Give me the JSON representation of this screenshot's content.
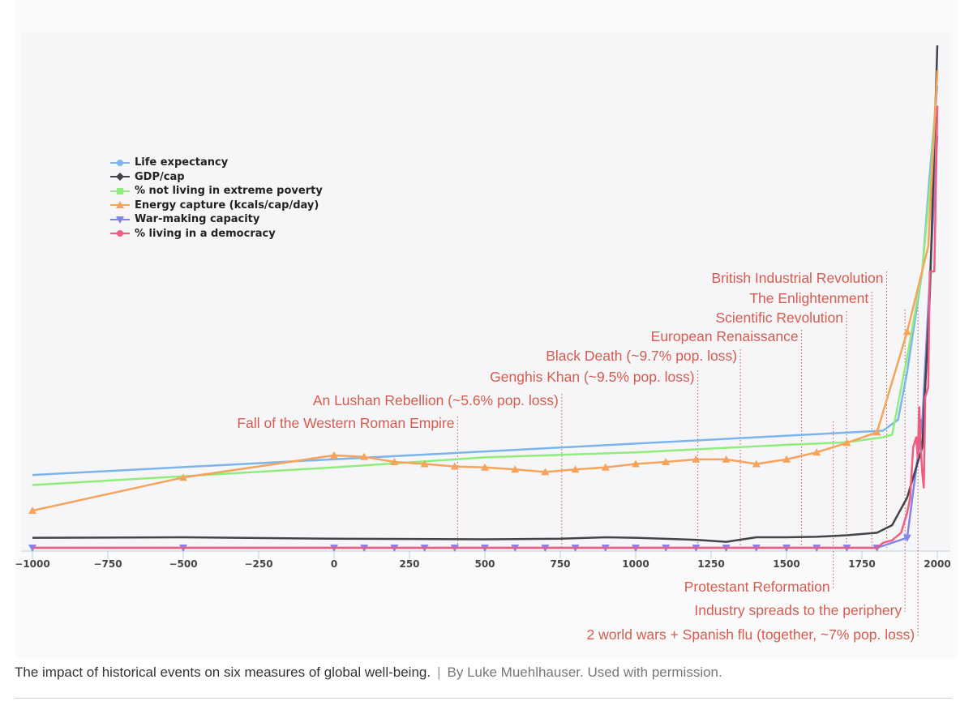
{
  "chart_data": {
    "type": "line",
    "title": "",
    "xlabel": "",
    "ylabel": "",
    "xlim": [
      -1050,
      2050
    ],
    "ylim": [
      0,
      100
    ],
    "x_ticks": [
      -1000,
      -750,
      -500,
      -250,
      0,
      250,
      500,
      750,
      1000,
      1250,
      1500,
      1750,
      2000
    ],
    "grid": false,
    "legend_position": "upper-left",
    "series": [
      {
        "name": "Life expectancy",
        "color": "#7cb5ec",
        "marker": "circle",
        "points": [
          [
            -1000,
            14.5
          ],
          [
            1820,
            23.3
          ],
          [
            1870,
            25.5
          ],
          [
            1900,
            35
          ],
          [
            1950,
            55
          ],
          [
            1973,
            73
          ],
          [
            2000,
            92
          ]
        ]
      },
      {
        "name": "GDP/cap",
        "color": "#434348",
        "marker": "diamond",
        "points": [
          [
            -1000,
            2
          ],
          [
            -500,
            2.1
          ],
          [
            0,
            1.8
          ],
          [
            500,
            1.7
          ],
          [
            750,
            1.8
          ],
          [
            900,
            2.1
          ],
          [
            1000,
            2
          ],
          [
            1200,
            1.6
          ],
          [
            1300,
            1.2
          ],
          [
            1400,
            2.1
          ],
          [
            1500,
            2.1
          ],
          [
            1600,
            2.2
          ],
          [
            1700,
            2.5
          ],
          [
            1800,
            3
          ],
          [
            1850,
            4.5
          ],
          [
            1900,
            10
          ],
          [
            1950,
            20
          ],
          [
            1975,
            50
          ],
          [
            2000,
            100
          ]
        ]
      },
      {
        "name": "% not living in extreme poverty",
        "color": "#90ed7d",
        "marker": "square",
        "points": [
          [
            -1000,
            12.5
          ],
          [
            0,
            16
          ],
          [
            500,
            18
          ],
          [
            1000,
            19
          ],
          [
            1500,
            20.5
          ],
          [
            1700,
            21
          ],
          [
            1820,
            22
          ],
          [
            1850,
            22.5
          ],
          [
            1900,
            38
          ],
          [
            1950,
            55
          ],
          [
            1980,
            75
          ],
          [
            2000,
            95
          ]
        ]
      },
      {
        "name": "Energy capture (kcals/cap/day)",
        "color": "#f7a35c",
        "marker": "triangle",
        "points": [
          [
            -1000,
            7.4
          ],
          [
            -500,
            14
          ],
          [
            0,
            18.4
          ],
          [
            100,
            18.1
          ],
          [
            200,
            17.1
          ],
          [
            300,
            16.7
          ],
          [
            400,
            16.2
          ],
          [
            500,
            16
          ],
          [
            600,
            15.6
          ],
          [
            700,
            15.1
          ],
          [
            800,
            15.6
          ],
          [
            900,
            16
          ],
          [
            1000,
            16.7
          ],
          [
            1100,
            17.1
          ],
          [
            1200,
            17.6
          ],
          [
            1300,
            17.6
          ],
          [
            1400,
            16.7
          ],
          [
            1500,
            17.6
          ],
          [
            1600,
            19
          ],
          [
            1700,
            20.9
          ],
          [
            1800,
            23
          ],
          [
            1900,
            43
          ],
          [
            1970,
            60
          ],
          [
            2000,
            95
          ]
        ]
      },
      {
        "name": "War-making capacity",
        "color": "#8085e9",
        "marker": "triangle-down",
        "points": [
          [
            -1000,
            0
          ],
          [
            -500,
            0
          ],
          [
            0,
            0
          ],
          [
            100,
            0
          ],
          [
            200,
            0
          ],
          [
            300,
            0
          ],
          [
            400,
            0
          ],
          [
            500,
            0
          ],
          [
            600,
            0
          ],
          [
            700,
            0
          ],
          [
            800,
            0
          ],
          [
            900,
            0
          ],
          [
            1000,
            0
          ],
          [
            1100,
            0
          ],
          [
            1200,
            0
          ],
          [
            1300,
            0
          ],
          [
            1400,
            0
          ],
          [
            1500,
            0
          ],
          [
            1600,
            0
          ],
          [
            1700,
            0
          ],
          [
            1800,
            0
          ],
          [
            1900,
            2
          ],
          [
            1950,
            25
          ],
          [
            2000,
            82
          ]
        ]
      },
      {
        "name": "% living in a democracy",
        "color": "#f15c80",
        "marker": "circle",
        "points": [
          [
            -1000,
            0
          ],
          [
            1800,
            0
          ],
          [
            1820,
            1
          ],
          [
            1850,
            1.5
          ],
          [
            1880,
            3
          ],
          [
            1900,
            7
          ],
          [
            1910,
            10
          ],
          [
            1920,
            20
          ],
          [
            1930,
            22
          ],
          [
            1935,
            18
          ],
          [
            1940,
            28
          ],
          [
            1945,
            20
          ],
          [
            1950,
            15
          ],
          [
            1955,
            12
          ],
          [
            1960,
            30
          ],
          [
            1970,
            32
          ],
          [
            1975,
            55
          ],
          [
            1990,
            55
          ],
          [
            2000,
            88
          ]
        ]
      }
    ],
    "event_lines": [
      {
        "year": 410,
        "label": "Fall of the Western Roman Empire"
      },
      {
        "year": 755,
        "label": "An Lushan Rebellion (~5.6% pop. loss)"
      },
      {
        "year": 1206,
        "label": "Genghis Khan (~9.5% pop. loss)"
      },
      {
        "year": 1347,
        "label": "Black Death (~9.7% pop. loss)"
      },
      {
        "year": 1550,
        "label": "European Renaissance"
      },
      {
        "year": 1699,
        "label": "Scientific Revolution"
      },
      {
        "year": 1783,
        "label": "The Enlightenment"
      },
      {
        "year": 1832,
        "label": "British Industrial Revolution"
      },
      {
        "year": 1655,
        "label": "Protestant Reformation"
      },
      {
        "year": 1893,
        "label": "Industry spreads to the periphery"
      },
      {
        "year": 1936,
        "label": "2 world wars + Spanish flu (together, ~7%  pop. loss)"
      }
    ]
  },
  "caption": {
    "text": "The impact of historical events on six measures of global well-being.",
    "separator": "|",
    "credit": "By Luke Muehlhauser. Used with permission."
  }
}
